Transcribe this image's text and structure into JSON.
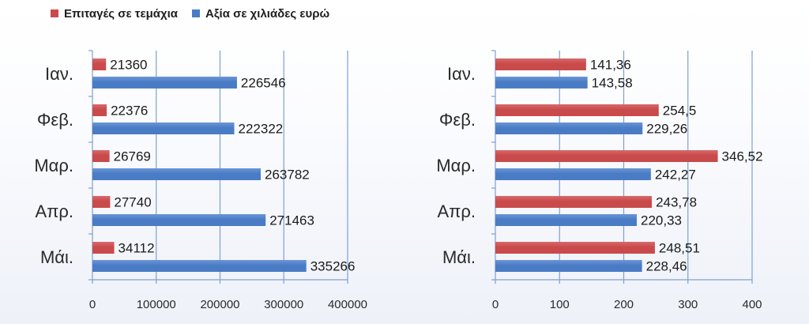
{
  "legend": {
    "orders_label": "Επιταγές σε τεμάχια",
    "value_label": "Αξία σε χιλιάδες ευρώ"
  },
  "colors": {
    "orders": "#c94a4b",
    "value": "#4a7cc5",
    "grid": "#7f9fd2",
    "axis": "#7f9fd2"
  },
  "chart_data": [
    {
      "type": "bar",
      "orientation": "horizontal",
      "categories": [
        "Ιαν.",
        "Φεβ.",
        "Μαρ.",
        "Απρ.",
        "Μάι."
      ],
      "series": [
        {
          "name": "Επιταγές σε τεμάχια",
          "values": [
            21360,
            22376,
            26769,
            27740,
            34112
          ],
          "labels": [
            "21360",
            "22376",
            "26769",
            "27740",
            "34112"
          ]
        },
        {
          "name": "Αξία σε χιλιάδες ευρώ",
          "values": [
            226546,
            222322,
            263782,
            271463,
            335266
          ],
          "labels": [
            "226546",
            "222322",
            "263782",
            "271463",
            "335266"
          ]
        }
      ],
      "xlim": [
        0,
        400000
      ],
      "xticks": [
        0,
        100000,
        200000,
        300000,
        400000
      ],
      "xtick_labels": [
        "0",
        "100000",
        "200000",
        "300000",
        "400000"
      ],
      "grid": true,
      "legend_position": "top-left"
    },
    {
      "type": "bar",
      "orientation": "horizontal",
      "categories": [
        "Ιαν.",
        "Φεβ.",
        "Μαρ.",
        "Απρ.",
        "Μάι."
      ],
      "series": [
        {
          "name": "Επιταγές σε τεμάχια",
          "values": [
            141.36,
            254.5,
            346.52,
            243.78,
            248.51
          ],
          "labels": [
            "141,36",
            "254,5",
            "346,52",
            "243,78",
            "248,51"
          ]
        },
        {
          "name": "Αξία σε χιλιάδες ευρώ",
          "values": [
            143.58,
            229.26,
            242.27,
            220.33,
            228.46
          ],
          "labels": [
            "143,58",
            "229,26",
            "242,27",
            "220,33",
            "228,46"
          ]
        }
      ],
      "xlim": [
        0,
        400
      ],
      "xticks": [
        0,
        100,
        200,
        300,
        400
      ],
      "xtick_labels": [
        "0",
        "100",
        "200",
        "300",
        "400"
      ],
      "grid": true
    }
  ]
}
